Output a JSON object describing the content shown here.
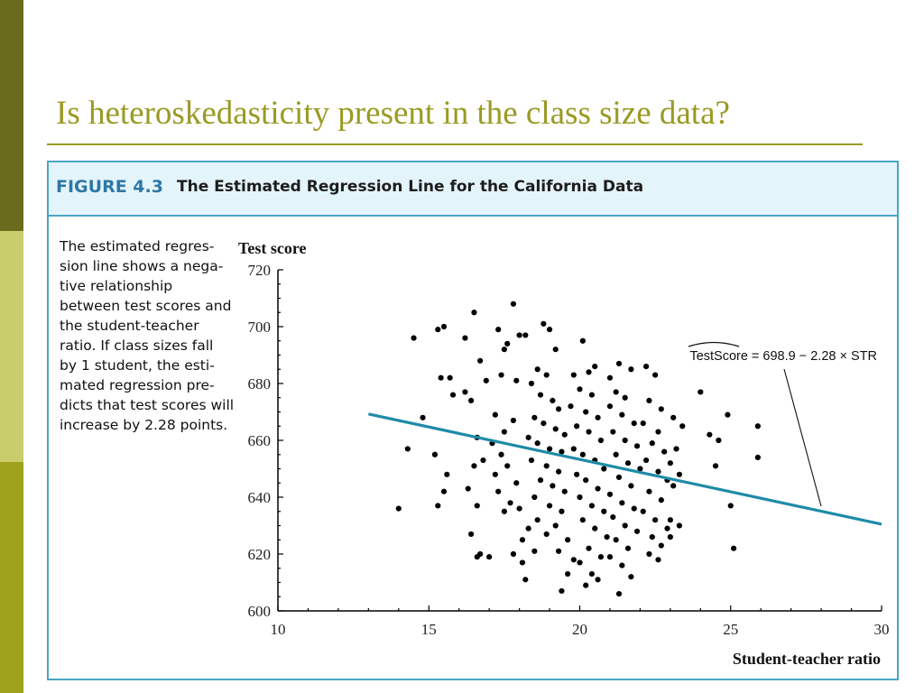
{
  "slide": {
    "title": "Is heteroskedasticity present in the class size data?",
    "accent_color": "#9a9a23"
  },
  "figure": {
    "number": "FIGURE 4.3",
    "title": "The Estimated Regression Line for the California Data",
    "caption_lines": [
      "The estimated regres-",
      "sion line shows a nega-",
      "tive relationship",
      "between test scores and",
      "the student-teacher",
      "ratio. If class sizes fall",
      "by 1 student, the esti-",
      "mated regression pre-",
      "dicts that test scores will",
      "increase by 2.28 points."
    ]
  },
  "chart_data": {
    "type": "scatter",
    "ylabel": "Test score",
    "xlabel": "Student-teacher ratio",
    "xlim": [
      10,
      30
    ],
    "ylim": [
      600,
      720
    ],
    "xticks": [
      10,
      15,
      20,
      25,
      30
    ],
    "yticks": [
      600,
      620,
      640,
      660,
      680,
      700,
      720
    ],
    "grid": false,
    "regression": {
      "intercept": 698.9,
      "slope": -2.28,
      "x_range": [
        13,
        30
      ],
      "color": "#1e8ba8",
      "label": "TestScore = 698.9 − 2.28 × STR"
    },
    "points": [
      [
        14.5,
        696
      ],
      [
        15.3,
        699
      ],
      [
        15.5,
        700
      ],
      [
        15.4,
        682
      ],
      [
        15.7,
        682
      ],
      [
        15.8,
        676
      ],
      [
        15.2,
        655
      ],
      [
        15.6,
        648
      ],
      [
        15.5,
        642
      ],
      [
        15.3,
        637
      ],
      [
        14.8,
        668
      ],
      [
        14.0,
        636
      ],
      [
        14.3,
        657
      ],
      [
        16.2,
        696
      ],
      [
        16.5,
        705
      ],
      [
        16.7,
        688
      ],
      [
        16.9,
        681
      ],
      [
        16.4,
        674
      ],
      [
        16.2,
        677
      ],
      [
        16.6,
        661
      ],
      [
        16.8,
        653
      ],
      [
        16.5,
        651
      ],
      [
        16.3,
        643
      ],
      [
        16.6,
        637
      ],
      [
        16.4,
        627
      ],
      [
        16.7,
        620
      ],
      [
        17.0,
        619
      ],
      [
        16.6,
        619
      ],
      [
        17.3,
        699
      ],
      [
        17.5,
        692
      ],
      [
        17.6,
        694
      ],
      [
        17.8,
        708
      ],
      [
        18.0,
        697
      ],
      [
        18.2,
        697
      ],
      [
        17.4,
        683
      ],
      [
        17.9,
        681
      ],
      [
        17.2,
        669
      ],
      [
        17.5,
        663
      ],
      [
        17.8,
        667
      ],
      [
        17.1,
        659
      ],
      [
        17.4,
        655
      ],
      [
        17.6,
        651
      ],
      [
        17.9,
        645
      ],
      [
        17.3,
        642
      ],
      [
        17.7,
        638
      ],
      [
        18.0,
        636
      ],
      [
        17.2,
        648
      ],
      [
        17.5,
        635
      ],
      [
        17.8,
        620
      ],
      [
        18.1,
        617
      ],
      [
        18.8,
        701
      ],
      [
        19.0,
        699
      ],
      [
        19.2,
        692
      ],
      [
        18.6,
        685
      ],
      [
        18.9,
        683
      ],
      [
        18.4,
        680
      ],
      [
        18.7,
        676
      ],
      [
        19.1,
        674
      ],
      [
        19.3,
        671
      ],
      [
        18.5,
        668
      ],
      [
        18.8,
        666
      ],
      [
        19.2,
        664
      ],
      [
        19.5,
        662
      ],
      [
        18.3,
        661
      ],
      [
        18.6,
        659
      ],
      [
        19.0,
        657
      ],
      [
        19.4,
        656
      ],
      [
        18.4,
        653
      ],
      [
        18.9,
        651
      ],
      [
        19.3,
        649
      ],
      [
        18.7,
        646
      ],
      [
        19.1,
        644
      ],
      [
        19.5,
        642
      ],
      [
        18.5,
        640
      ],
      [
        19.0,
        637
      ],
      [
        19.4,
        635
      ],
      [
        18.6,
        632
      ],
      [
        19.2,
        630
      ],
      [
        18.9,
        627
      ],
      [
        19.6,
        625
      ],
      [
        19.3,
        621
      ],
      [
        19.8,
        618
      ],
      [
        19.4,
        607
      ],
      [
        19.6,
        613
      ],
      [
        18.3,
        629
      ],
      [
        18.1,
        625
      ],
      [
        18.5,
        621
      ],
      [
        18.2,
        611
      ],
      [
        19.8,
        683
      ],
      [
        20.1,
        695
      ],
      [
        20.3,
        684
      ],
      [
        20.5,
        686
      ],
      [
        20.0,
        678
      ],
      [
        20.4,
        676
      ],
      [
        19.7,
        672
      ],
      [
        20.2,
        670
      ],
      [
        20.6,
        668
      ],
      [
        19.9,
        665
      ],
      [
        20.3,
        663
      ],
      [
        20.7,
        660
      ],
      [
        19.8,
        657
      ],
      [
        20.1,
        655
      ],
      [
        20.5,
        653
      ],
      [
        20.8,
        650
      ],
      [
        19.9,
        648
      ],
      [
        20.2,
        646
      ],
      [
        20.6,
        643
      ],
      [
        20.0,
        640
      ],
      [
        20.4,
        637
      ],
      [
        20.8,
        635
      ],
      [
        20.1,
        632
      ],
      [
        20.5,
        629
      ],
      [
        20.9,
        626
      ],
      [
        20.3,
        622
      ],
      [
        20.7,
        619
      ],
      [
        20.0,
        617
      ],
      [
        20.4,
        613
      ],
      [
        20.6,
        611
      ],
      [
        20.2,
        609
      ],
      [
        21.0,
        682
      ],
      [
        21.3,
        687
      ],
      [
        21.7,
        685
      ],
      [
        21.2,
        677
      ],
      [
        21.5,
        675
      ],
      [
        21.0,
        672
      ],
      [
        21.4,
        669
      ],
      [
        21.8,
        666
      ],
      [
        21.1,
        663
      ],
      [
        21.5,
        660
      ],
      [
        21.9,
        658
      ],
      [
        21.2,
        655
      ],
      [
        21.6,
        652
      ],
      [
        22.0,
        650
      ],
      [
        21.3,
        647
      ],
      [
        21.7,
        644
      ],
      [
        21.0,
        641
      ],
      [
        21.4,
        638
      ],
      [
        21.8,
        636
      ],
      [
        21.1,
        633
      ],
      [
        21.5,
        630
      ],
      [
        21.9,
        628
      ],
      [
        21.2,
        625
      ],
      [
        21.6,
        622
      ],
      [
        21.0,
        619
      ],
      [
        21.4,
        616
      ],
      [
        21.3,
        606
      ],
      [
        21.7,
        612
      ],
      [
        22.2,
        686
      ],
      [
        22.5,
        683
      ],
      [
        22.3,
        674
      ],
      [
        22.7,
        671
      ],
      [
        22.1,
        666
      ],
      [
        22.6,
        663
      ],
      [
        22.4,
        659
      ],
      [
        22.8,
        656
      ],
      [
        22.2,
        653
      ],
      [
        22.6,
        649
      ],
      [
        22.9,
        646
      ],
      [
        22.3,
        642
      ],
      [
        22.7,
        639
      ],
      [
        22.1,
        635
      ],
      [
        22.5,
        632
      ],
      [
        22.9,
        629
      ],
      [
        22.4,
        626
      ],
      [
        22.7,
        623
      ],
      [
        22.3,
        620
      ],
      [
        22.6,
        618
      ],
      [
        23.1,
        668
      ],
      [
        23.4,
        665
      ],
      [
        23.2,
        657
      ],
      [
        23.0,
        652
      ],
      [
        23.3,
        648
      ],
      [
        23.1,
        644
      ],
      [
        23.0,
        632
      ],
      [
        23.3,
        630
      ],
      [
        23.0,
        626
      ],
      [
        24.0,
        677
      ],
      [
        24.3,
        662
      ],
      [
        24.5,
        651
      ],
      [
        24.9,
        669
      ],
      [
        25.0,
        637
      ],
      [
        25.1,
        622
      ],
      [
        25.9,
        665
      ],
      [
        25.9,
        654
      ],
      [
        24.6,
        660
      ]
    ]
  }
}
